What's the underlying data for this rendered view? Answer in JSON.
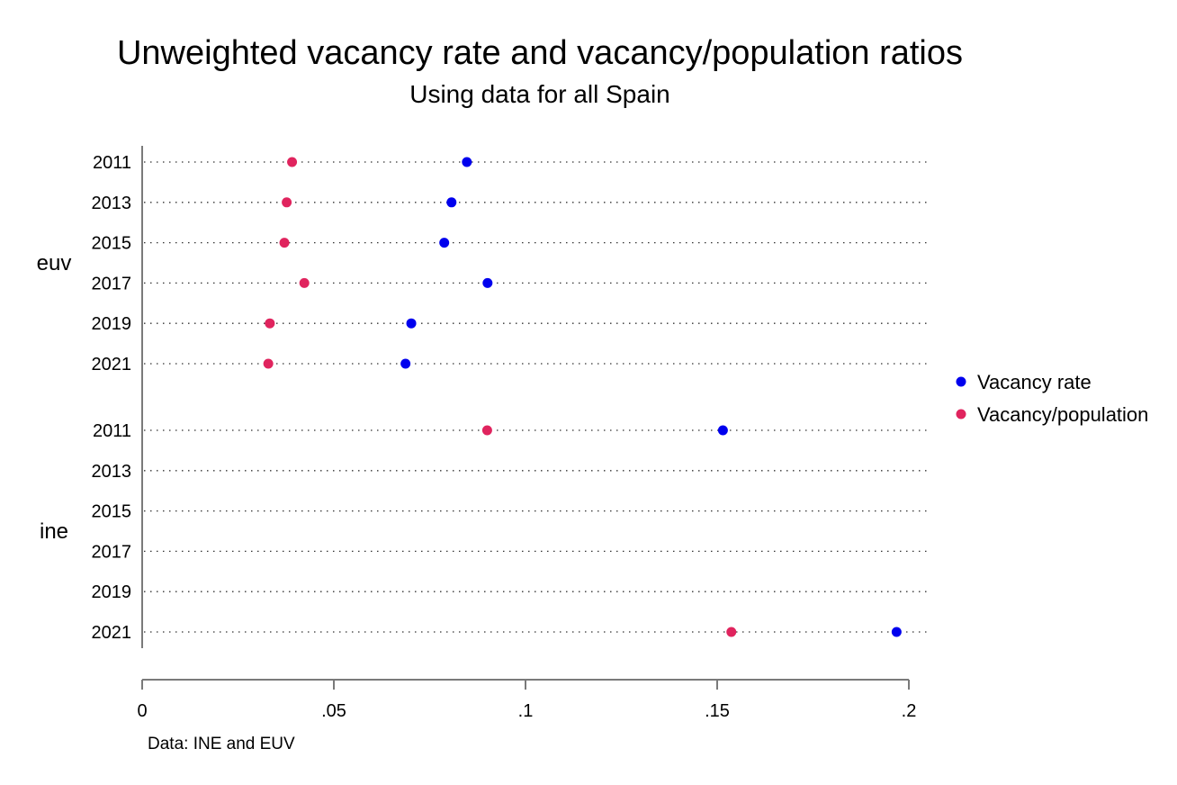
{
  "chart_data": {
    "type": "scatter",
    "title": "Unweighted vacancy rate and vacancy/population ratios",
    "subtitle": "Using data for all Spain",
    "note": "Data: INE and EUV",
    "xlim": [
      0,
      0.2
    ],
    "x_ticks": [
      {
        "value": 0,
        "label": "0"
      },
      {
        "value": 0.05,
        "label": ".05"
      },
      {
        "value": 0.1,
        "label": ".1"
      },
      {
        "value": 0.15,
        "label": ".15"
      },
      {
        "value": 0.2,
        "label": ".2"
      }
    ],
    "grid": "dotted horizontal",
    "legend_position": "right",
    "groups": [
      {
        "name": "euv",
        "categories": [
          "2011",
          "2013",
          "2015",
          "2017",
          "2019",
          "2021"
        ]
      },
      {
        "name": "ine",
        "categories": [
          "2011",
          "2013",
          "2015",
          "2017",
          "2019",
          "2021"
        ]
      }
    ],
    "series": [
      {
        "name": "Vacancy rate",
        "color": "#0000ee",
        "values": {
          "euv": [
            0.0847,
            0.0807,
            0.0788,
            0.0901,
            0.0702,
            0.0687
          ],
          "ine": [
            0.1515,
            null,
            null,
            null,
            null,
            0.1968
          ]
        }
      },
      {
        "name": "Vacancy/population",
        "color": "#e0245e",
        "values": {
          "euv": [
            0.0391,
            0.0377,
            0.0371,
            0.0423,
            0.0333,
            0.0329
          ],
          "ine": [
            0.09,
            null,
            null,
            null,
            null,
            0.1537
          ]
        }
      }
    ]
  }
}
